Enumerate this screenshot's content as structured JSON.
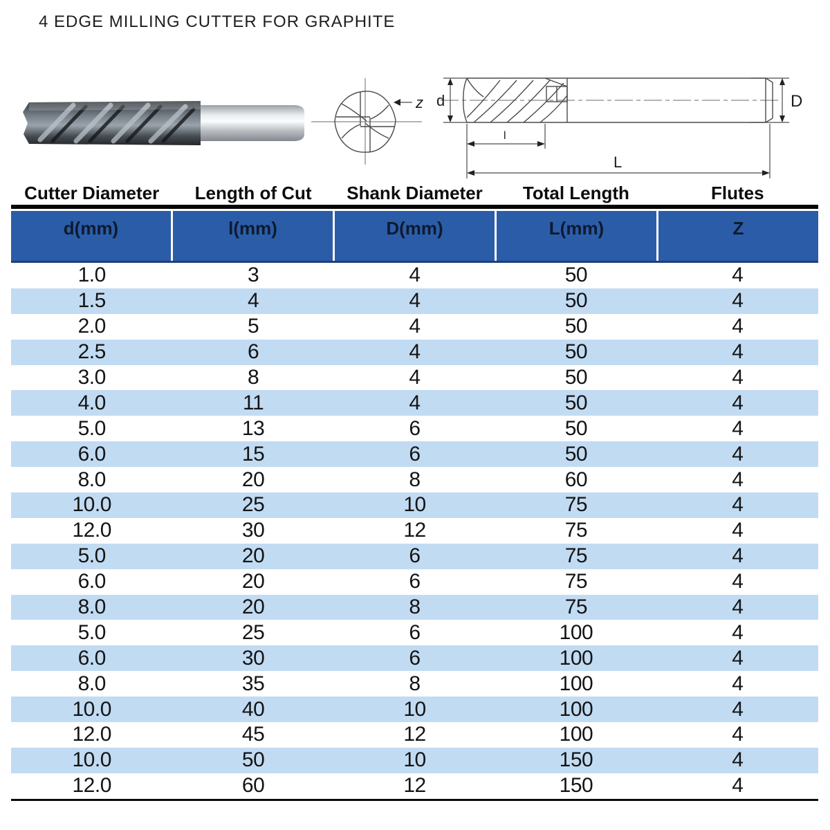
{
  "title": "4 EDGE MILLING CUTTER FOR GRAPHITE",
  "diagram": {
    "dim_labels": {
      "d": "d",
      "D": "D",
      "l": "l",
      "L": "L",
      "z": "z"
    }
  },
  "table": {
    "columns": [
      {
        "label": "Cutter Diameter",
        "unit": "d(mm)"
      },
      {
        "label": "Length of Cut",
        "unit": "l(mm)"
      },
      {
        "label": "Shank Diameter",
        "unit": "D(mm)"
      },
      {
        "label": "Total Length",
        "unit": "L(mm)"
      },
      {
        "label": "Flutes",
        "unit": "Z"
      }
    ],
    "rows": [
      [
        "1.0",
        "3",
        "4",
        "50",
        "4"
      ],
      [
        "1.5",
        "4",
        "4",
        "50",
        "4"
      ],
      [
        "2.0",
        "5",
        "4",
        "50",
        "4"
      ],
      [
        "2.5",
        "6",
        "4",
        "50",
        "4"
      ],
      [
        "3.0",
        "8",
        "4",
        "50",
        "4"
      ],
      [
        "4.0",
        "11",
        "4",
        "50",
        "4"
      ],
      [
        "5.0",
        "13",
        "6",
        "50",
        "4"
      ],
      [
        "6.0",
        "15",
        "6",
        "50",
        "4"
      ],
      [
        "8.0",
        "20",
        "8",
        "60",
        "4"
      ],
      [
        "10.0",
        "25",
        "10",
        "75",
        "4"
      ],
      [
        "12.0",
        "30",
        "12",
        "75",
        "4"
      ],
      [
        "5.0",
        "20",
        "6",
        "75",
        "4"
      ],
      [
        "6.0",
        "20",
        "6",
        "75",
        "4"
      ],
      [
        "8.0",
        "20",
        "8",
        "75",
        "4"
      ],
      [
        "5.0",
        "25",
        "6",
        "100",
        "4"
      ],
      [
        "6.0",
        "30",
        "6",
        "100",
        "4"
      ],
      [
        "8.0",
        "35",
        "8",
        "100",
        "4"
      ],
      [
        "10.0",
        "40",
        "10",
        "100",
        "4"
      ],
      [
        "12.0",
        "45",
        "12",
        "100",
        "4"
      ],
      [
        "10.0",
        "50",
        "10",
        "150",
        "4"
      ],
      [
        "12.0",
        "60",
        "12",
        "150",
        "4"
      ]
    ]
  },
  "colors": {
    "header_blue": "#2b5ca8",
    "stripe_blue": "#c1dbf2",
    "rule_black": "#070707"
  }
}
